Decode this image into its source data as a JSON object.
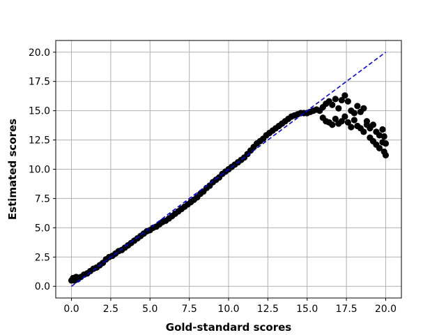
{
  "chart_data": {
    "type": "scatter",
    "title": "",
    "xlabel": "Gold-standard scores",
    "ylabel": "Estimated scores",
    "xlim": [
      -1.0,
      21.0
    ],
    "ylim": [
      -1.0,
      21.0
    ],
    "xticks": [
      0.0,
      2.5,
      5.0,
      7.5,
      10.0,
      12.5,
      15.0,
      17.5,
      20.0
    ],
    "yticks": [
      0.0,
      2.5,
      5.0,
      7.5,
      10.0,
      12.5,
      15.0,
      17.5,
      20.0
    ],
    "xtick_labels": [
      "0.0",
      "2.5",
      "5.0",
      "7.5",
      "10.0",
      "12.5",
      "15.0",
      "17.5",
      "20.0"
    ],
    "ytick_labels": [
      "0.0",
      "2.5",
      "5.0",
      "7.5",
      "10.0",
      "12.5",
      "15.0",
      "17.5",
      "20.0"
    ],
    "grid": true,
    "legend": false,
    "colors": {
      "points": "#000000",
      "reference": "#0000ff",
      "grid": "#b0b0b0"
    },
    "reference_line": {
      "style": "dashed",
      "x": [
        0.0,
        20.0
      ],
      "y": [
        0.0,
        20.0
      ]
    },
    "series": [
      {
        "marker": "circle",
        "x": [
          0.0,
          0.1,
          0.2,
          0.3,
          0.4,
          0.6,
          0.8,
          1.0,
          1.2,
          1.4,
          1.6,
          1.8,
          2.0,
          2.2,
          2.4,
          2.6,
          2.8,
          3.0,
          3.2,
          3.4,
          3.6,
          3.8,
          4.0,
          4.2,
          4.4,
          4.6,
          4.8,
          5.0,
          5.2,
          5.4,
          5.6,
          5.8,
          6.0,
          6.2,
          6.4,
          6.6,
          6.8,
          7.0,
          7.2,
          7.4,
          7.6,
          7.8,
          8.0,
          8.2,
          8.4,
          8.6,
          8.8,
          9.0,
          9.2,
          9.4,
          9.6,
          9.8,
          10.0,
          10.2,
          10.4,
          10.6,
          10.8,
          11.0,
          11.2,
          11.4,
          11.6,
          11.8,
          12.0,
          12.2,
          12.4,
          12.6,
          12.8,
          13.0,
          13.2,
          13.4,
          13.6,
          13.8,
          14.0,
          14.2,
          14.4,
          14.6,
          14.8,
          15.0,
          15.2,
          15.4,
          15.6,
          15.8,
          16.0,
          16.0,
          16.2,
          16.2,
          16.4,
          16.4,
          16.6,
          16.6,
          16.8,
          16.8,
          17.0,
          17.0,
          17.2,
          17.2,
          17.4,
          17.4,
          17.6,
          17.6,
          17.8,
          17.8,
          18.0,
          18.0,
          18.2,
          18.2,
          18.4,
          18.4,
          18.6,
          18.6,
          18.8,
          18.8,
          19.0,
          19.0,
          19.2,
          19.2,
          19.4,
          19.4,
          19.6,
          19.6,
          19.8,
          19.8,
          19.9,
          19.9,
          20.0,
          20.0
        ],
        "y": [
          0.5,
          0.7,
          0.5,
          0.8,
          0.6,
          0.8,
          1.0,
          1.1,
          1.3,
          1.5,
          1.6,
          1.8,
          2.0,
          2.3,
          2.5,
          2.6,
          2.8,
          3.0,
          3.1,
          3.3,
          3.5,
          3.7,
          3.9,
          4.1,
          4.3,
          4.5,
          4.7,
          4.8,
          5.0,
          5.1,
          5.3,
          5.5,
          5.6,
          5.8,
          6.0,
          6.2,
          6.4,
          6.6,
          6.8,
          7.0,
          7.2,
          7.4,
          7.6,
          7.9,
          8.1,
          8.4,
          8.6,
          8.9,
          9.1,
          9.3,
          9.6,
          9.8,
          10.0,
          10.2,
          10.4,
          10.6,
          10.8,
          11.0,
          11.3,
          11.6,
          11.9,
          12.2,
          12.4,
          12.6,
          12.9,
          13.1,
          13.3,
          13.5,
          13.7,
          13.9,
          14.1,
          14.3,
          14.5,
          14.6,
          14.7,
          14.8,
          14.8,
          14.8,
          14.9,
          15.0,
          15.1,
          15.0,
          14.4,
          15.3,
          14.1,
          15.6,
          14.0,
          15.8,
          13.8,
          15.5,
          14.3,
          16.0,
          13.9,
          15.2,
          14.1,
          15.9,
          14.5,
          16.3,
          14.0,
          15.8,
          13.6,
          15.0,
          14.2,
          14.8,
          13.7,
          15.4,
          13.5,
          14.9,
          13.2,
          15.2,
          13.8,
          14.1,
          12.7,
          13.5,
          12.4,
          13.8,
          12.1,
          13.2,
          11.8,
          12.9,
          12.3,
          13.4,
          11.5,
          12.8,
          11.2,
          12.2
        ]
      }
    ]
  }
}
